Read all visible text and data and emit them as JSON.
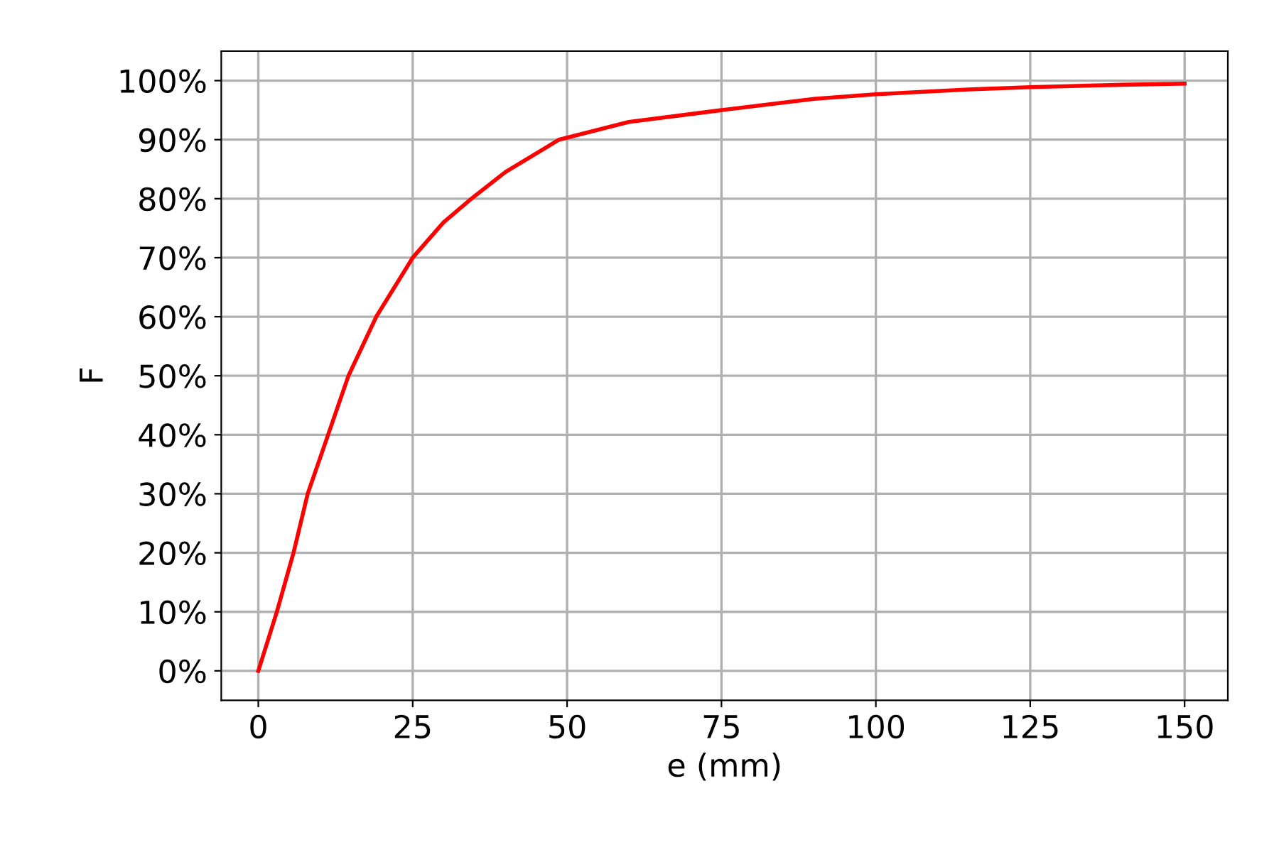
{
  "chart_data": {
    "type": "line",
    "xlabel": "e (mm)",
    "ylabel": "F",
    "series": [
      {
        "color": "#ff0000",
        "x": [
          0,
          3,
          5.7,
          8,
          11.3,
          14.6,
          19.1,
          25,
          30,
          34.5,
          40,
          48.7,
          60,
          75,
          90,
          100,
          115,
          125,
          140,
          150
        ],
        "values": [
          0,
          10,
          20,
          30,
          40,
          50,
          60,
          70,
          76,
          80,
          84.5,
          90,
          93,
          95,
          96.9,
          97.7,
          98.5,
          98.9,
          99.3,
          99.5
        ]
      }
    ],
    "xlim": [
      -6,
      157
    ],
    "xticks": [
      0,
      25,
      50,
      75,
      100,
      125,
      150
    ],
    "ylim": [
      -5,
      105
    ],
    "yticks": [
      {
        "value": 0,
        "label": "0%"
      },
      {
        "value": 10,
        "label": "10%"
      },
      {
        "value": 20,
        "label": "20%"
      },
      {
        "value": 30,
        "label": "30%"
      },
      {
        "value": 40,
        "label": "40%"
      },
      {
        "value": 50,
        "label": "50%"
      },
      {
        "value": 60,
        "label": "60%"
      },
      {
        "value": 70,
        "label": "70%"
      },
      {
        "value": 80,
        "label": "80%"
      },
      {
        "value": 90,
        "label": "90%"
      },
      {
        "value": 100,
        "label": "100%"
      }
    ],
    "grid": true,
    "marker": "none",
    "line_style": "solid"
  }
}
